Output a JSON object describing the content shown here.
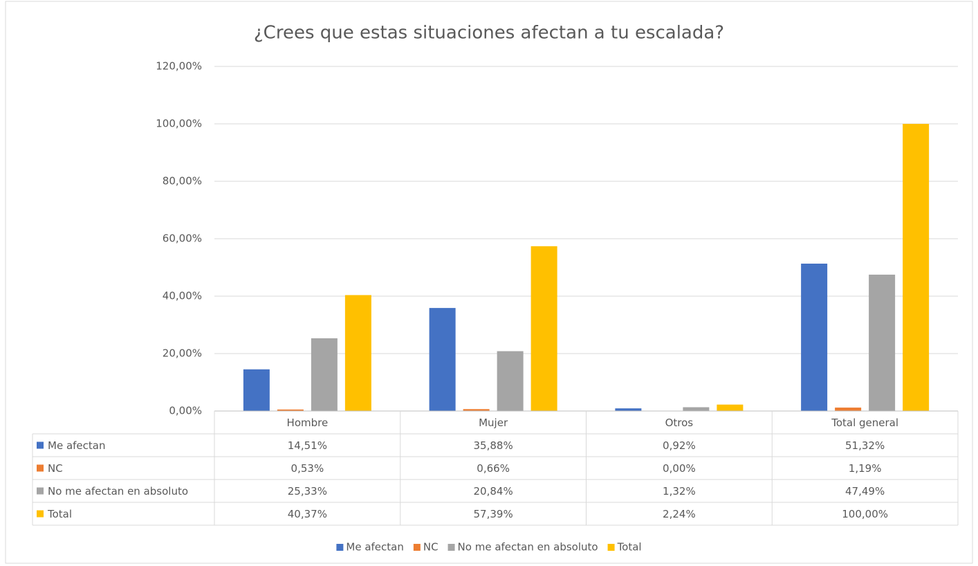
{
  "chart_data": {
    "type": "bar",
    "title": "¿Crees que estas situaciones afectan a tu escalada?",
    "categories": [
      "Hombre",
      "Mujer",
      "Otros",
      "Total general"
    ],
    "series": [
      {
        "name": "Me afectan",
        "color": "#4472c4",
        "values": [
          14.51,
          35.88,
          0.92,
          51.32
        ],
        "value_labels": [
          "14,51%",
          "35,88%",
          "0,92%",
          "51,32%"
        ]
      },
      {
        "name": "NC",
        "color": "#ed7d31",
        "values": [
          0.53,
          0.66,
          0.0,
          1.19
        ],
        "value_labels": [
          "0,53%",
          "0,66%",
          "0,00%",
          "1,19%"
        ]
      },
      {
        "name": "No me afectan en absoluto",
        "color": "#a5a5a5",
        "values": [
          25.33,
          20.84,
          1.32,
          47.49
        ],
        "value_labels": [
          "25,33%",
          "20,84%",
          "1,32%",
          "47,49%"
        ]
      },
      {
        "name": "Total",
        "color": "#ffc000",
        "values": [
          40.37,
          57.39,
          2.24,
          100.0
        ],
        "value_labels": [
          "40,37%",
          "57,39%",
          "2,24%",
          "100,00%"
        ]
      }
    ],
    "ylim": [
      0,
      120
    ],
    "yticks": [
      {
        "value": 0,
        "label": "0,00%"
      },
      {
        "value": 20,
        "label": "20,00%"
      },
      {
        "value": 40,
        "label": "40,00%"
      },
      {
        "value": 60,
        "label": "60,00%"
      },
      {
        "value": 80,
        "label": "80,00%"
      },
      {
        "value": 100,
        "label": "100,00%"
      },
      {
        "value": 120,
        "label": "120,00%"
      }
    ],
    "grid": true,
    "legend": "bottom",
    "data_table": true
  }
}
